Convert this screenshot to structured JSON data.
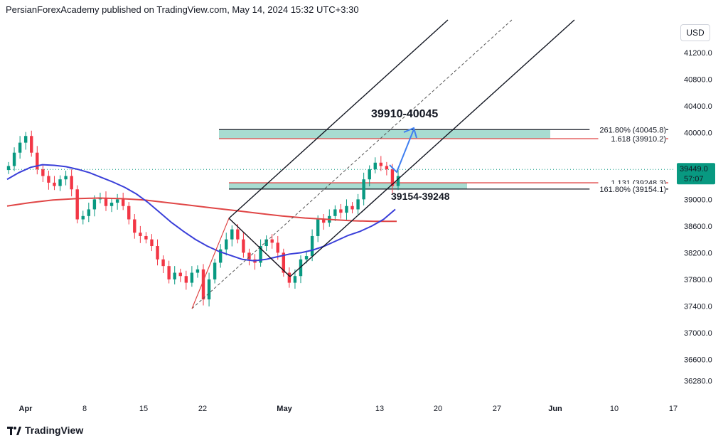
{
  "header": {
    "text": "PersianForexAcademy published on TradingView.com, May 14, 2024 15:32 UTC+3:30"
  },
  "brand": {
    "name": "TradingView"
  },
  "currency": "USD",
  "colors": {
    "candle_up": "#089981",
    "candle_down": "#f23645",
    "ma_fast": "#3a3fd9",
    "ma_slow": "#e04646",
    "zone_fill": "#a8dcd1",
    "fib_red": "#e04646",
    "channel": "#131722",
    "arrow": "#3f7ff0",
    "dotted": "#089981"
  },
  "chart_data": {
    "type": "candlestick",
    "symbol": "",
    "ylim": [
      35920,
      41520
    ],
    "y_ticks": [
      41200,
      40800,
      40400,
      40000,
      39000,
      38600,
      38200,
      37800,
      37400,
      37000,
      36600,
      36280
    ],
    "y_tick_labels": [
      "41200.0",
      "40800.0",
      "40400.0",
      "40000.0",
      "39000.0",
      "38600.0",
      "38200.0",
      "37800.0",
      "37400.0",
      "37000.0",
      "36600.0",
      "36280.0"
    ],
    "x_ticks": [
      "Apr",
      "8",
      "15",
      "22",
      "May",
      "13",
      "20",
      "27",
      "Jun",
      "10",
      "17"
    ],
    "x_tick_bold": [
      "Apr",
      "May",
      "Jun"
    ],
    "current_price": {
      "value": "39449.0",
      "countdown": "57:07"
    },
    "fib_levels": [
      {
        "label": "261.80% (40045.8)",
        "value": 40045.8,
        "color": "#131722"
      },
      {
        "label": "1.618 (39910.2)",
        "value": 39910.2,
        "color": "#e04646"
      },
      {
        "label": "1.131 (39248.3)",
        "value": 39248.3,
        "color": "#e04646"
      },
      {
        "label": "161.80% (39154.1)",
        "value": 39154.1,
        "color": "#131722"
      }
    ],
    "annotations": [
      {
        "text": "39910-40045"
      },
      {
        "text": "39154-39248"
      }
    ],
    "zones": [
      {
        "from": 39910.2,
        "to": 40045.8
      },
      {
        "from": 39154.1,
        "to": 39248.3
      }
    ],
    "close_series": [
      39500,
      39700,
      39850,
      39950,
      39700,
      39450,
      39350,
      39250,
      39200,
      39300,
      39350,
      39150,
      38700,
      38750,
      38850,
      39000,
      39020,
      38900,
      38950,
      39000,
      38900,
      38700,
      38500,
      38450,
      38400,
      38300,
      38100,
      38000,
      37800,
      37900,
      37850,
      37750,
      37900,
      37950,
      37500,
      37800,
      38050,
      38250,
      38400,
      38550,
      38400,
      38200,
      38100,
      38050,
      38300,
      38400,
      38350,
      38200,
      37900,
      37750,
      37850,
      38100,
      38150,
      38450,
      38700,
      38650,
      38750,
      38850,
      38800,
      38900,
      38850,
      39000,
      39300,
      39450,
      39550,
      39500,
      39450,
      39200,
      39350
    ],
    "ma_fast": [
      39300,
      39400,
      39480,
      39520,
      39510,
      39490,
      39450,
      39400,
      39330,
      39260,
      39180,
      39080,
      38950,
      38800,
      38650,
      38520,
      38400,
      38300,
      38220,
      38160,
      38100,
      38080,
      38100,
      38140,
      38180,
      38200,
      38240,
      38300,
      38380,
      38460,
      38520,
      38600,
      38700,
      38850
    ],
    "ma_slow": [
      38900,
      38950,
      38990,
      39010,
      39020,
      39010,
      38990,
      38950,
      38910,
      38870,
      38830,
      38790,
      38750,
      38720,
      38700,
      38680,
      38670,
      38670
    ]
  }
}
